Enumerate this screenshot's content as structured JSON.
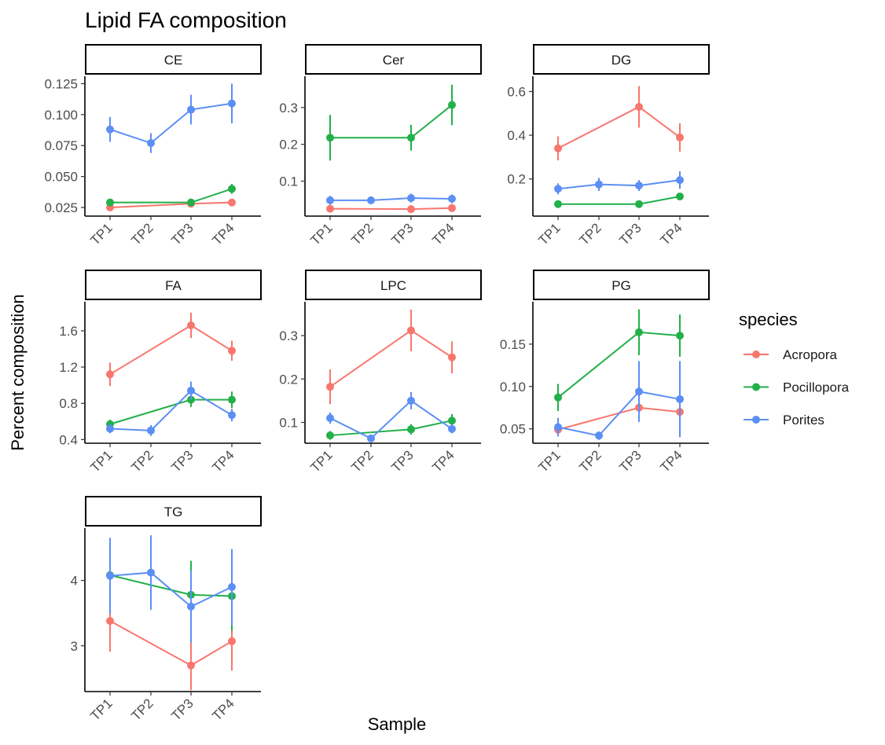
{
  "chart_data": {
    "type": "line",
    "title": "Lipid FA composition",
    "xlabel": "Sample",
    "ylabel": "Percent composition",
    "categories": [
      "TP1",
      "TP2",
      "TP3",
      "TP4"
    ],
    "legend": {
      "title": "species",
      "placement": "right",
      "entries": [
        "Acropora",
        "Pocillopora",
        "Porites"
      ]
    },
    "colors": {
      "Acropora": "#F8766D",
      "Pocillopora": "#22B04A",
      "Porites": "#5B8FF5"
    },
    "grid": false,
    "panels": [
      {
        "name": "CE",
        "ylim": [
          0.018,
          0.131
        ],
        "yticks": [
          0.025,
          0.05,
          0.075,
          0.1,
          0.125
        ],
        "ytick_labels": [
          "0.025",
          "0.050",
          "0.075",
          "0.100",
          "0.125"
        ],
        "series": [
          {
            "name": "Acropora",
            "x": [
              "TP1",
              "TP3",
              "TP4"
            ],
            "y": [
              0.025,
              0.028,
              0.029
            ],
            "err": [
              0,
              0,
              0
            ]
          },
          {
            "name": "Pocillopora",
            "x": [
              "TP1",
              "TP3",
              "TP4"
            ],
            "y": [
              0.029,
              0.029,
              0.04
            ],
            "err": [
              0.003,
              0.002,
              0.004
            ]
          },
          {
            "name": "Porites",
            "x": [
              "TP1",
              "TP2",
              "TP3",
              "TP4"
            ],
            "y": [
              0.088,
              0.077,
              0.104,
              0.109
            ],
            "err": [
              0.01,
              0.008,
              0.012,
              0.016
            ]
          }
        ]
      },
      {
        "name": "Cer",
        "ylim": [
          0.005,
          0.385
        ],
        "yticks": [
          0.1,
          0.2,
          0.3
        ],
        "ytick_labels": [
          "0.1",
          "0.2",
          "0.3"
        ],
        "series": [
          {
            "name": "Acropora",
            "x": [
              "TP1",
              "TP3",
              "TP4"
            ],
            "y": [
              0.025,
              0.024,
              0.027
            ],
            "err": [
              0,
              0,
              0
            ]
          },
          {
            "name": "Pocillopora",
            "x": [
              "TP1",
              "TP3",
              "TP4"
            ],
            "y": [
              0.218,
              0.218,
              0.307
            ],
            "err": [
              0.062,
              0.035,
              0.055
            ]
          },
          {
            "name": "Porites",
            "x": [
              "TP1",
              "TP2",
              "TP3",
              "TP4"
            ],
            "y": [
              0.048,
              0.048,
              0.054,
              0.052
            ],
            "err": [
              0.012,
              0.006,
              0.012,
              0.012
            ]
          }
        ]
      },
      {
        "name": "DG",
        "ylim": [
          0.03,
          0.67
        ],
        "yticks": [
          0.2,
          0.4,
          0.6
        ],
        "ytick_labels": [
          "0.2",
          "0.4",
          "0.6"
        ],
        "series": [
          {
            "name": "Acropora",
            "x": [
              "TP1",
              "TP3",
              "TP4"
            ],
            "y": [
              0.34,
              0.53,
              0.39
            ],
            "err": [
              0.055,
              0.095,
              0.065
            ]
          },
          {
            "name": "Pocillopora",
            "x": [
              "TP1",
              "TP3",
              "TP4"
            ],
            "y": [
              0.085,
              0.085,
              0.12
            ],
            "err": [
              0.005,
              0.005,
              0.01
            ]
          },
          {
            "name": "Porites",
            "x": [
              "TP1",
              "TP2",
              "TP3",
              "TP4"
            ],
            "y": [
              0.155,
              0.175,
              0.17,
              0.195
            ],
            "err": [
              0.025,
              0.03,
              0.025,
              0.04
            ]
          }
        ]
      },
      {
        "name": "FA",
        "ylim": [
          0.36,
          1.92
        ],
        "yticks": [
          0.4,
          0.8,
          1.2,
          1.6
        ],
        "ytick_labels": [
          "0.4",
          "0.8",
          "1.2",
          "1.6"
        ],
        "series": [
          {
            "name": "Acropora",
            "x": [
              "TP1",
              "TP3",
              "TP4"
            ],
            "y": [
              1.12,
              1.66,
              1.38
            ],
            "err": [
              0.13,
              0.14,
              0.11
            ]
          },
          {
            "name": "Pocillopora",
            "x": [
              "TP1",
              "TP3",
              "TP4"
            ],
            "y": [
              0.57,
              0.84,
              0.84
            ],
            "err": [
              0.05,
              0.08,
              0.09
            ]
          },
          {
            "name": "Porites",
            "x": [
              "TP1",
              "TP2",
              "TP3",
              "TP4"
            ],
            "y": [
              0.52,
              0.5,
              0.94,
              0.67
            ],
            "err": [
              0.05,
              0.06,
              0.1,
              0.07
            ]
          }
        ]
      },
      {
        "name": "LPC",
        "ylim": [
          0.052,
          0.378
        ],
        "yticks": [
          0.1,
          0.2,
          0.3
        ],
        "ytick_labels": [
          "0.1",
          "0.2",
          "0.3"
        ],
        "series": [
          {
            "name": "Acropora",
            "x": [
              "TP1",
              "TP3",
              "TP4"
            ],
            "y": [
              0.182,
              0.312,
              0.25
            ],
            "err": [
              0.04,
              0.048,
              0.037
            ]
          },
          {
            "name": "Pocillopora",
            "x": [
              "TP1",
              "TP3",
              "TP4"
            ],
            "y": [
              0.07,
              0.084,
              0.104
            ],
            "err": [
              0.01,
              0.012,
              0.015
            ]
          },
          {
            "name": "Porites",
            "x": [
              "TP1",
              "TP2",
              "TP3",
              "TP4"
            ],
            "y": [
              0.11,
              0.063,
              0.15,
              0.085
            ],
            "err": [
              0.013,
              0.004,
              0.02,
              0.01
            ]
          }
        ]
      },
      {
        "name": "PG",
        "ylim": [
          0.033,
          0.2
        ],
        "yticks": [
          0.05,
          0.1,
          0.15
        ],
        "ytick_labels": [
          "0.05",
          "0.10",
          "0.15"
        ],
        "series": [
          {
            "name": "Acropora",
            "x": [
              "TP1",
              "TP3",
              "TP4"
            ],
            "y": [
              0.049,
              0.075,
              0.07
            ],
            "err": [
              0.006,
              0.01,
              0.011
            ]
          },
          {
            "name": "Pocillopora",
            "x": [
              "TP1",
              "TP3",
              "TP4"
            ],
            "y": [
              0.087,
              0.164,
              0.16
            ],
            "err": [
              0.016,
              0.027,
              0.025
            ]
          },
          {
            "name": "Porites",
            "x": [
              "TP1",
              "TP2",
              "TP3",
              "TP4"
            ],
            "y": [
              0.052,
              0.042,
              0.094,
              0.085
            ],
            "err": [
              0.011,
              0.005,
              0.036,
              0.045
            ]
          }
        ]
      },
      {
        "name": "TG",
        "ylim": [
          2.3,
          4.8
        ],
        "yticks": [
          3,
          4
        ],
        "ytick_labels": [
          "3",
          "4"
        ],
        "series": [
          {
            "name": "Acropora",
            "x": [
              "TP1",
              "TP3",
              "TP4"
            ],
            "y": [
              3.38,
              2.7,
              3.07
            ],
            "err": [
              0.47,
              0.38,
              0.45
            ]
          },
          {
            "name": "Pocillopora",
            "x": [
              "TP1",
              "TP3",
              "TP4"
            ],
            "y": [
              4.08,
              3.78,
              3.76
            ],
            "err": [
              0.57,
              0.52,
              0.53
            ]
          },
          {
            "name": "Porites",
            "x": [
              "TP1",
              "TP2",
              "TP3",
              "TP4"
            ],
            "y": [
              4.07,
              4.12,
              3.6,
              3.9
            ],
            "err": [
              0.58,
              0.57,
              0.55,
              0.58
            ]
          }
        ]
      }
    ]
  }
}
